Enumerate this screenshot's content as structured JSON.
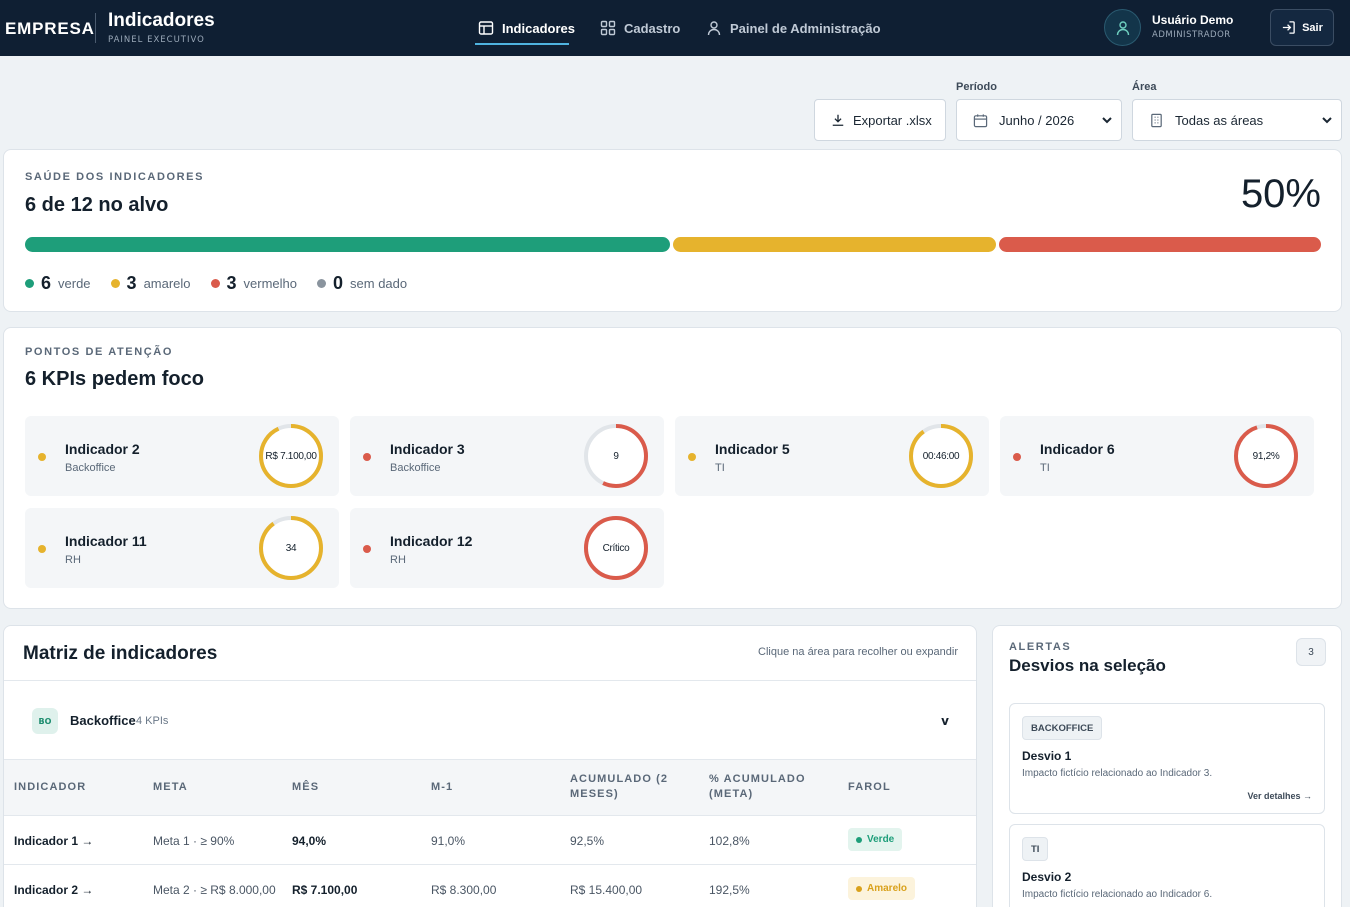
{
  "header": {
    "brand": "EMPRESA",
    "title": "Indicadores",
    "subtitle": "PAINEL EXECUTIVO",
    "nav": [
      {
        "label": "Indicadores",
        "icon": "table-icon",
        "active": true
      },
      {
        "label": "Cadastro",
        "icon": "grid-icon",
        "active": false
      },
      {
        "label": "Painel de Administração",
        "icon": "user-icon",
        "active": false
      }
    ],
    "user": {
      "name": "Usuário Demo",
      "role": "ADMINISTRADOR"
    },
    "logout_label": "Sair"
  },
  "filters": {
    "export_label": "Exportar .xlsx",
    "period_label": "Período",
    "period_value": "Junho / 2026",
    "area_label": "Área",
    "area_value": "Todas as áreas"
  },
  "health": {
    "eyebrow": "SAÚDE DOS INDICADORES",
    "title": "6 de 12 no alvo",
    "percent": "50%",
    "counts": {
      "verde": 6,
      "amarelo": 3,
      "vermelho": 3,
      "sem_dado": 0
    },
    "legend": [
      {
        "count": "6",
        "label": "verde",
        "color": "#1e9e7a"
      },
      {
        "count": "3",
        "label": "amarelo",
        "color": "#e6b32d"
      },
      {
        "count": "3",
        "label": "vermelho",
        "color": "#da5b4b"
      },
      {
        "count": "0",
        "label": "sem dado",
        "color": "#8a949e"
      }
    ]
  },
  "attention": {
    "eyebrow": "PONTOS DE ATENÇÃO",
    "title": "6 KPIs pedem foco",
    "kpis": [
      {
        "name": "Indicador 2",
        "area": "Backoffice",
        "value": "R$ 7.100,00",
        "status_color": "#e6b32d",
        "progress": 0.93
      },
      {
        "name": "Indicador 3",
        "area": "Backoffice",
        "value": "9",
        "status_color": "#da5b4b",
        "progress": 0.57
      },
      {
        "name": "Indicador 5",
        "area": "TI",
        "value": "00:46:00",
        "status_color": "#e6b32d",
        "progress": 0.9
      },
      {
        "name": "Indicador 6",
        "area": "TI",
        "value": "91,2%",
        "status_color": "#da5b4b",
        "progress": 0.95
      },
      {
        "name": "Indicador 11",
        "area": "RH",
        "value": "34",
        "status_color": "#e6b32d",
        "progress": 0.9
      },
      {
        "name": "Indicador 12",
        "area": "RH",
        "value": "Crítico",
        "status_color": "#da5b4b",
        "progress": 1.0
      }
    ]
  },
  "matrix": {
    "title": "Matriz de indicadores",
    "hint": "Clique na área para recolher ou expandir",
    "group": {
      "badge": "BO",
      "name": "Backoffice",
      "count": "4 KPIs",
      "chevron": "v"
    },
    "columns": [
      "INDICADOR",
      "META",
      "MÊS",
      "M-1",
      "ACUMULADO (2 MESES)",
      "% ACUMULADO (META)",
      "FAROL"
    ],
    "rows": [
      {
        "indicador": "Indicador 1 →",
        "meta": "Meta 1 · ≥ 90%",
        "mes": "94,0%",
        "m1": "91,0%",
        "acumulado": "92,5%",
        "pct": "102,8%",
        "farol": "Verde",
        "farol_color": "#1e9e7a",
        "farol_bg": "#e3f4ee"
      },
      {
        "indicador": "Indicador 2 →",
        "meta": "Meta 2 · ≥ R$ 8.000,00",
        "mes": "R$ 7.100,00",
        "m1": "R$ 8.300,00",
        "acumulado": "R$ 15.400,00",
        "pct": "192,5%",
        "farol": "Amarelo",
        "farol_color": "#d9a11c",
        "farol_bg": "#fcf3dc"
      }
    ]
  },
  "alerts": {
    "eyebrow": "ALERTAS",
    "title": "Desvios na seleção",
    "count": "3",
    "items": [
      {
        "tag": "BACKOFFICE",
        "title": "Desvio 1",
        "desc": "Impacto fictício relacionado ao Indicador 3.",
        "link": "Ver detalhes →"
      },
      {
        "tag": "TI",
        "title": "Desvio 2",
        "desc": "Impacto fictício relacionado ao Indicador 6."
      }
    ]
  }
}
